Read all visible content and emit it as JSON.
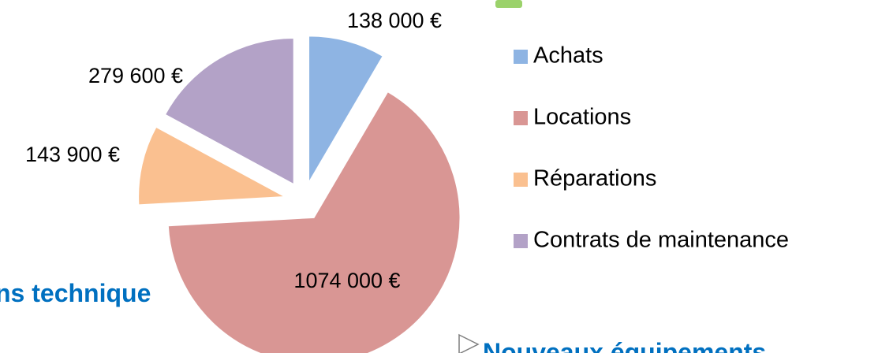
{
  "chart_data": {
    "type": "pie",
    "categories": [
      "Achats",
      "Locations",
      "Réparations",
      "Contrats de maintenance"
    ],
    "values": [
      138000,
      1074000,
      143900,
      279600
    ],
    "value_labels": [
      "138 000 €",
      "1074 000 €",
      "143 900 €",
      "279 600 €"
    ],
    "colors": [
      "#8eb4e3",
      "#d99694",
      "#fac090",
      "#b3a2c7"
    ],
    "exploded": true,
    "legend": "right"
  },
  "slide_text": [
    "ns technique",
    "Nouveaux équipements"
  ]
}
